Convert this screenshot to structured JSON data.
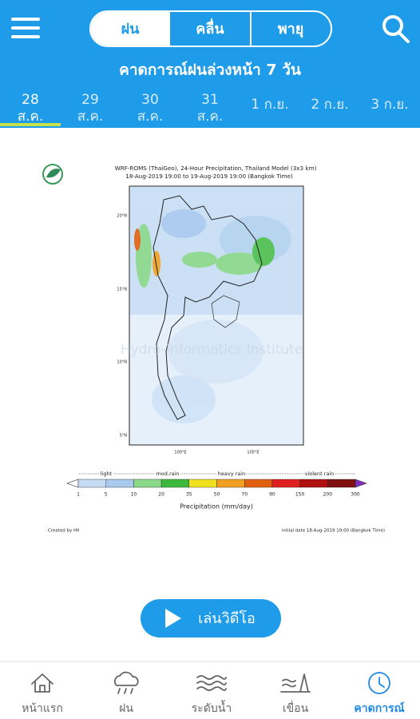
{
  "header": {
    "tabs": [
      "ฝน",
      "คลื่น",
      "พายุ"
    ],
    "title": "คาดการณ์ฝนล่วงหน้า 7 วัน",
    "dates": [
      {
        "day": "28",
        "month": "ส.ค."
      },
      {
        "day": "29",
        "month": "ส.ค."
      },
      {
        "day": "30",
        "month": "ส.ค."
      },
      {
        "day": "31",
        "month": "ส.ค."
      },
      {
        "label": "1 ก.ย."
      },
      {
        "label": "2 ก.ย."
      },
      {
        "label": "3 ก.ย."
      }
    ]
  },
  "map": {
    "title": "WRF-ROMS (ThaiGeo), 24-Hour Precipitation, Thailand Model (3x3 km)",
    "subtitle": "18-Aug-2019 19:00 to 19-Aug-2019 19:00 (Bangkok Time)",
    "watermark": "Hydro-Informatics Institute",
    "lat_labels": [
      "20°N",
      "15°N",
      "10°N",
      "5°N"
    ],
    "lon_labels": [
      "100°E",
      "105°E"
    ],
    "legend_groups": [
      "light",
      "mod.rain",
      "heavy rain",
      "violent rain"
    ],
    "legend_ticks": [
      "1",
      "5",
      "10",
      "20",
      "35",
      "50",
      "70",
      "90",
      "150",
      "200",
      "300"
    ],
    "legend_title": "Precipitation (mm/day)",
    "credit": "Created by HII",
    "initial_date": "initial date 18-Aug-2019 19:00 (Bangkok Time)"
  },
  "play_button": "เล่นวิดีโอ",
  "nav": [
    "หน้าแรก",
    "ฝน",
    "ระดับน้ำ",
    "เขื่อน",
    "คาดการณ์"
  ]
}
